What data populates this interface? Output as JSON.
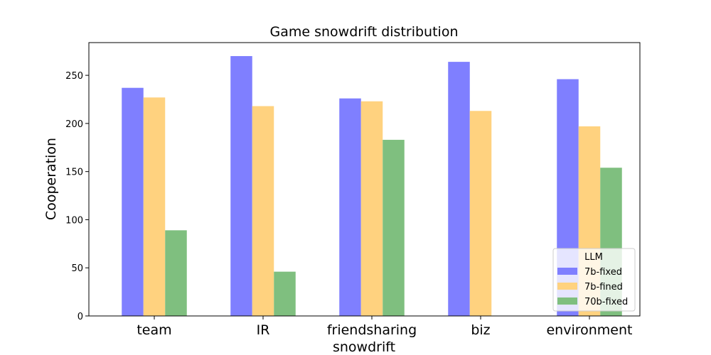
{
  "chart_data": {
    "type": "bar",
    "title": "Game snowdrift distribution",
    "xlabel": "snowdrift",
    "ylabel": "Cooperation",
    "categories": [
      "team",
      "IR",
      "friendsharing",
      "biz",
      "environment"
    ],
    "series": [
      {
        "name": "7b-fixed",
        "color": "#7f7fff",
        "values": [
          237,
          270,
          226,
          264,
          246
        ]
      },
      {
        "name": "7b-fined",
        "color": "#ffd27f",
        "values": [
          227,
          218,
          223,
          213,
          197
        ]
      },
      {
        "name": "70b-fixed",
        "color": "#7fbf7f",
        "values": [
          89,
          46,
          183,
          0,
          154
        ]
      }
    ],
    "ylim": [
      0,
      284
    ],
    "yticks": [
      0,
      50,
      100,
      150,
      200,
      250
    ],
    "grid": false,
    "legend": {
      "title": "LLM",
      "position": "lower-right"
    }
  }
}
